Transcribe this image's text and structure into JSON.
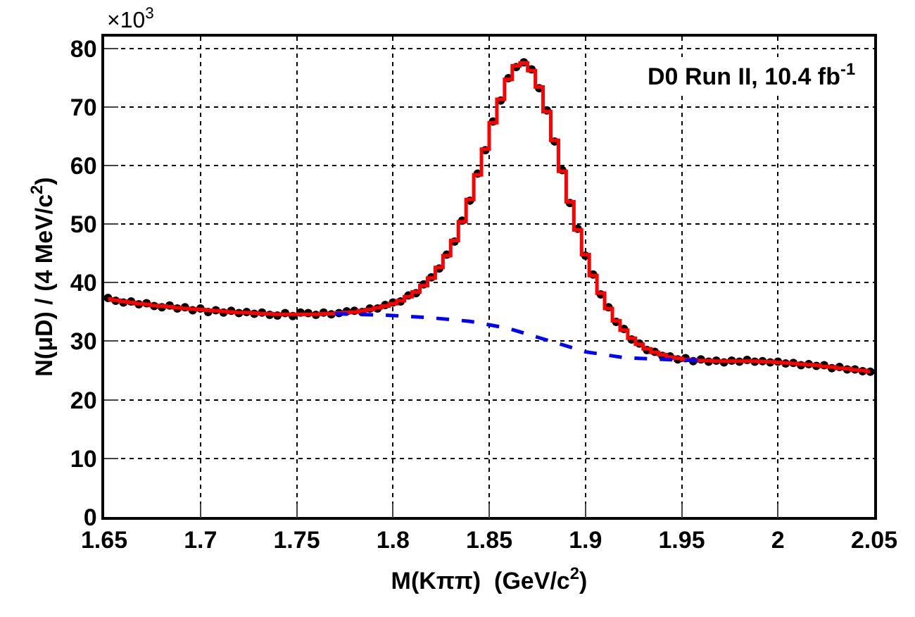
{
  "chart_data": {
    "type": "scatter",
    "xlabel": "M(Kππ)  (GeV/c$^{2}$)",
    "ylabel": "N(μD) / (4 MeV/c$^{2}$)",
    "annotations": [
      "×10$^{3}$",
      "D0 Run II, 10.4 fb$^{-1}$"
    ],
    "x": [
      1.652,
      1.656,
      1.66,
      1.664,
      1.668,
      1.672,
      1.676,
      1.68,
      1.684,
      1.688,
      1.692,
      1.696,
      1.7,
      1.704,
      1.708,
      1.712,
      1.716,
      1.72,
      1.724,
      1.728,
      1.732,
      1.736,
      1.74,
      1.744,
      1.748,
      1.752,
      1.756,
      1.76,
      1.764,
      1.768,
      1.772,
      1.776,
      1.78,
      1.784,
      1.788,
      1.792,
      1.796,
      1.8,
      1.804,
      1.808,
      1.812,
      1.816,
      1.82,
      1.824,
      1.828,
      1.832,
      1.836,
      1.84,
      1.844,
      1.848,
      1.852,
      1.856,
      1.86,
      1.864,
      1.868,
      1.872,
      1.876,
      1.88,
      1.884,
      1.888,
      1.892,
      1.896,
      1.9,
      1.904,
      1.908,
      1.912,
      1.916,
      1.92,
      1.924,
      1.928,
      1.932,
      1.936,
      1.94,
      1.944,
      1.948,
      1.952,
      1.956,
      1.96,
      1.964,
      1.968,
      1.972,
      1.976,
      1.98,
      1.984,
      1.988,
      1.992,
      1.996,
      2.0,
      2.004,
      2.008,
      2.012,
      2.016,
      2.02,
      2.024,
      2.028,
      2.032,
      2.036,
      2.04,
      2.044,
      2.048
    ],
    "series": [
      {
        "type": "step",
        "color": "#ff0000",
        "line_style": "solid",
        "marker": "none",
        "values": [
          37.2,
          37.0,
          36.8,
          36.6,
          36.4,
          36.3,
          36.1,
          36.0,
          35.9,
          35.7,
          35.6,
          35.5,
          35.4,
          35.3,
          35.2,
          35.1,
          35.0,
          34.9,
          34.9,
          34.8,
          34.7,
          34.7,
          34.6,
          34.6,
          34.6,
          34.6,
          34.6,
          34.6,
          34.7,
          34.7,
          34.8,
          34.9,
          35.0,
          35.2,
          35.4,
          35.7,
          36.0,
          36.4,
          36.9,
          37.6,
          38.4,
          39.5,
          40.8,
          42.6,
          44.6,
          47.2,
          50.4,
          54.2,
          58.4,
          62.8,
          67.3,
          71.3,
          74.7,
          77.0,
          77.5,
          76.2,
          73.4,
          69.2,
          64.3,
          59.0,
          53.8,
          49.0,
          44.8,
          41.2,
          38.2,
          35.6,
          33.5,
          31.9,
          30.5,
          29.5,
          28.7,
          28.1,
          27.7,
          27.3,
          27.1,
          26.9,
          26.8,
          26.7,
          26.7,
          26.6,
          26.6,
          26.6,
          26.6,
          26.6,
          26.6,
          26.5,
          26.5,
          26.4,
          26.3,
          26.2,
          26.1,
          26.0,
          25.9,
          25.7,
          25.6,
          25.4,
          25.3,
          25.1,
          25.0,
          24.8
        ]
      },
      {
        "color": "#000000",
        "marker": "circle",
        "values": [
          37.4,
          36.9,
          36.6,
          36.8,
          36.3,
          36.5,
          36.0,
          35.8,
          36.1,
          35.6,
          35.8,
          35.3,
          35.6,
          35.0,
          35.3,
          34.9,
          35.2,
          34.8,
          35.0,
          34.7,
          34.9,
          34.5,
          34.4,
          34.8,
          34.3,
          34.9,
          34.8,
          34.5,
          34.9,
          34.6,
          34.8,
          35.1,
          35.2,
          35.0,
          35.6,
          35.6,
          36.2,
          36.6,
          36.8,
          37.8,
          38.2,
          39.7,
          40.9,
          42.4,
          44.8,
          47.0,
          50.6,
          54.0,
          58.6,
          62.6,
          67.5,
          71.1,
          74.9,
          76.8,
          77.6,
          76.4,
          73.2,
          69.4,
          64.1,
          59.2,
          53.6,
          49.2,
          44.6,
          41.4,
          38.0,
          35.8,
          33.3,
          32.1,
          30.3,
          29.6,
          28.5,
          28.2,
          27.5,
          27.4,
          26.9,
          27.1,
          26.6,
          26.9,
          26.5,
          26.7,
          26.4,
          26.7,
          26.5,
          26.8,
          26.5,
          26.6,
          26.4,
          26.5,
          26.2,
          26.3,
          25.9,
          26.1,
          25.8,
          25.9,
          25.4,
          25.6,
          25.2,
          25.2,
          24.9,
          24.8
        ]
      },
      {
        "type": "line",
        "color": "#0000ff",
        "line_style": "dashed",
        "marker": "none",
        "x": [
          1.77,
          1.78,
          1.8,
          1.82,
          1.84,
          1.86,
          1.88,
          1.9,
          1.92,
          1.94,
          1.96
        ],
        "values": [
          34.7,
          34.6,
          34.4,
          34.0,
          33.4,
          32.2,
          30.2,
          28.2,
          27.2,
          26.9,
          26.7
        ]
      }
    ],
    "xlim": [
      1.65,
      2.05
    ],
    "ylim": [
      0,
      82
    ],
    "xticks": [
      1.65,
      1.7,
      1.75,
      1.8,
      1.85,
      1.9,
      1.95,
      2,
      2.05
    ],
    "yticks": [
      0,
      10,
      20,
      30,
      40,
      50,
      60,
      70,
      80
    ],
    "grid": true
  }
}
